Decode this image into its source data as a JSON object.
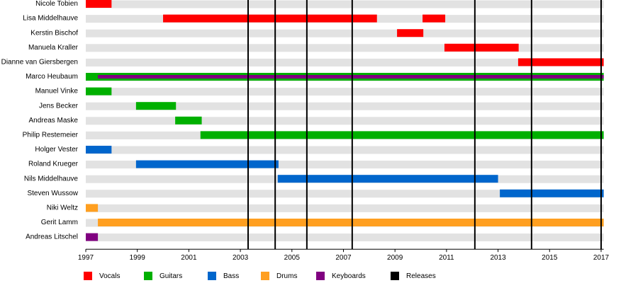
{
  "chart_data": {
    "type": "timeline",
    "roles": [
      {
        "name": "Vocals",
        "color": "#ff0000"
      },
      {
        "name": "Guitars",
        "color": "#00b000"
      },
      {
        "name": "Bass",
        "color": "#0066cc"
      },
      {
        "name": "Drums",
        "color": "#ff9f20"
      },
      {
        "name": "Keyboards",
        "color": "#800080"
      }
    ],
    "members": [
      {
        "name": "Nicole Tobien",
        "bars": [
          {
            "role": 0,
            "start": 1997,
            "end": 1998
          }
        ]
      },
      {
        "name": "Lisa Middelhauve",
        "bars": [
          {
            "role": 0,
            "start": 2000,
            "end": 2008.3
          },
          {
            "role": 0,
            "start": 2010.07,
            "end": 2010.95
          }
        ]
      },
      {
        "name": "Kerstin Bischof",
        "bars": [
          {
            "role": 0,
            "start": 2009.08,
            "end": 2010.1
          }
        ]
      },
      {
        "name": "Manuela Kraller",
        "bars": [
          {
            "role": 0,
            "start": 2010.92,
            "end": 2013.8
          }
        ]
      },
      {
        "name": "Dianne van Giersbergen",
        "bars": [
          {
            "role": 0,
            "start": 2013.78,
            "end": 2017.1
          }
        ]
      },
      {
        "name": "Marco Heubaum",
        "bars": [
          {
            "role": 1,
            "start": 1997,
            "end": 2017.1
          },
          {
            "role": 4,
            "start": 1997.47,
            "end": 2017.1
          }
        ]
      },
      {
        "name": "Manuel Vinke",
        "bars": [
          {
            "role": 1,
            "start": 1997,
            "end": 1998
          }
        ]
      },
      {
        "name": "Jens Becker",
        "bars": [
          {
            "role": 1,
            "start": 1998.95,
            "end": 2000.5
          }
        ]
      },
      {
        "name": "Andreas Maske",
        "bars": [
          {
            "role": 1,
            "start": 2000.47,
            "end": 2001.5
          }
        ]
      },
      {
        "name": "Philip Restemeier",
        "bars": [
          {
            "role": 1,
            "start": 2001.45,
            "end": 2017.1
          }
        ]
      },
      {
        "name": "Holger Vester",
        "bars": [
          {
            "role": 2,
            "start": 1997,
            "end": 1998
          }
        ]
      },
      {
        "name": "Roland Krueger",
        "bars": [
          {
            "role": 2,
            "start": 1998.95,
            "end": 2004.48
          }
        ]
      },
      {
        "name": "Nils Middelhauve",
        "bars": [
          {
            "role": 2,
            "start": 2004.45,
            "end": 2013
          }
        ]
      },
      {
        "name": "Steven Wussow",
        "bars": [
          {
            "role": 2,
            "start": 2013.07,
            "end": 2017.1
          }
        ]
      },
      {
        "name": "Niki Weltz",
        "bars": [
          {
            "role": 3,
            "start": 1997,
            "end": 1997.47
          }
        ]
      },
      {
        "name": "Gerit Lamm",
        "bars": [
          {
            "role": 3,
            "start": 1997.47,
            "end": 2017.1
          }
        ]
      },
      {
        "name": "Andreas Litschel",
        "bars": [
          {
            "role": 4,
            "start": 1997,
            "end": 1997.47
          }
        ]
      }
    ],
    "releases": {
      "name": "Releases",
      "color": "#000000",
      "values": [
        2003.3,
        2004.35,
        2005.58,
        2007.34,
        2012.1,
        2014.3,
        2017
      ]
    },
    "xlim": [
      1997,
      2017.1
    ],
    "xticks": [
      1997,
      1999,
      2001,
      2003,
      2005,
      2007,
      2009,
      2011,
      2013,
      2015,
      2017
    ]
  }
}
